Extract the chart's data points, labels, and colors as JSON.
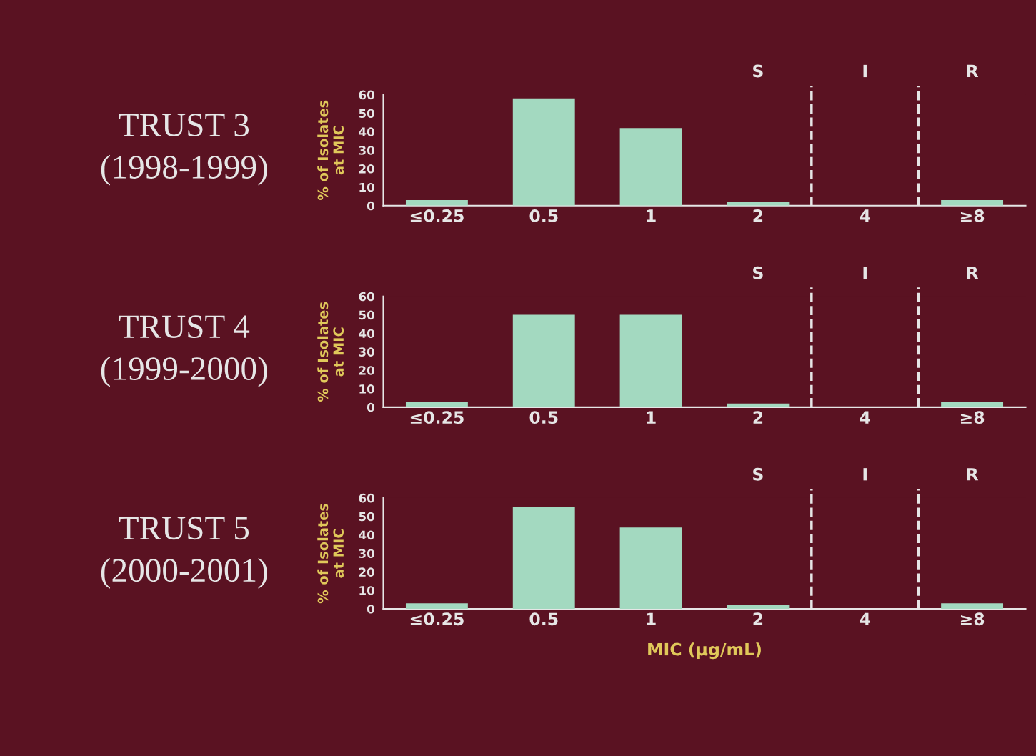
{
  "chart_data": [
    {
      "type": "bar",
      "title": "TRUST 3",
      "subtitle": "(1998-1999)",
      "ylabel": "% of Isolates\nat MIC",
      "categories": [
        "≤0.25",
        "0.5",
        "1",
        "2",
        "4",
        "≥8"
      ],
      "values": [
        3,
        58,
        42,
        2,
        0,
        3
      ],
      "color": "#a3d9c0",
      "ylim": [
        0,
        60
      ],
      "yticks": [
        0,
        10,
        20,
        30,
        40,
        50,
        60
      ],
      "grid": false,
      "legend": false,
      "annotations": [
        "S",
        "I",
        "R"
      ]
    },
    {
      "type": "bar",
      "title": "TRUST 4",
      "subtitle": "(1999-2000)",
      "ylabel": "% of Isolates\nat MIC",
      "categories": [
        "≤0.25",
        "0.5",
        "1",
        "2",
        "4",
        "≥8"
      ],
      "values": [
        3,
        50,
        50,
        2,
        0,
        3
      ],
      "color": "#a3d9c0",
      "ylim": [
        0,
        60
      ],
      "yticks": [
        0,
        10,
        20,
        30,
        40,
        50,
        60
      ],
      "grid": false,
      "legend": false,
      "annotations": [
        "S",
        "I",
        "R"
      ]
    },
    {
      "type": "bar",
      "title": "TRUST 5",
      "subtitle": "(2000-2001)",
      "ylabel": "% of Isolates\nat MIC",
      "xlabel": "MIC (µg/mL)",
      "categories": [
        "≤0.25",
        "0.5",
        "1",
        "2",
        "4",
        "≥8"
      ],
      "values": [
        3,
        55,
        44,
        2,
        0,
        3
      ],
      "color": "#a3d9c0",
      "ylim": [
        0,
        60
      ],
      "yticks": [
        0,
        10,
        20,
        30,
        40,
        50,
        60
      ],
      "grid": false,
      "legend": false,
      "annotations": [
        "S",
        "I",
        "R"
      ]
    }
  ]
}
